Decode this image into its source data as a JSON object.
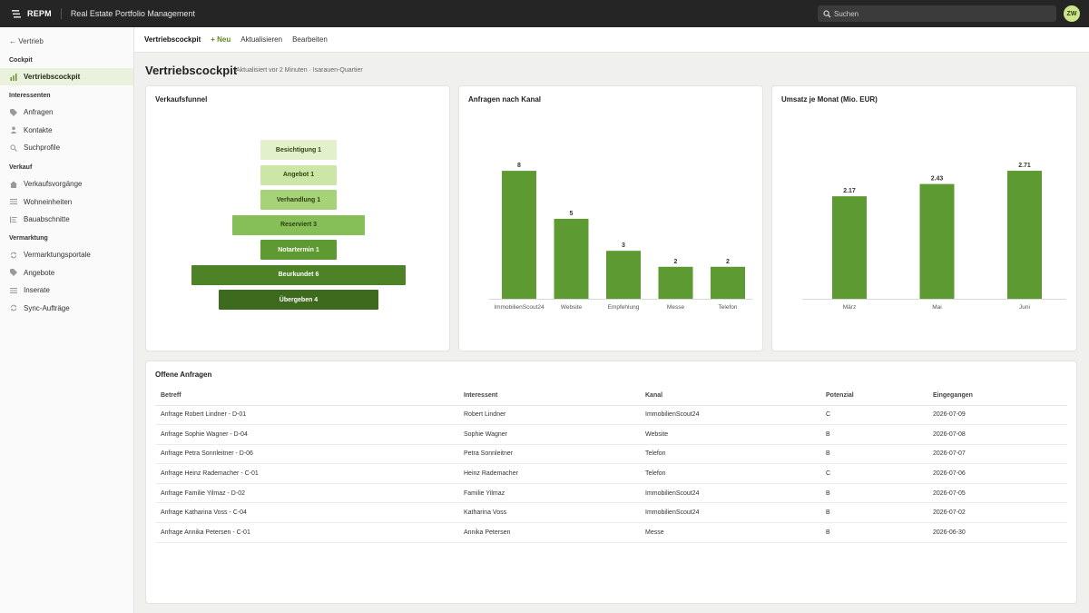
{
  "topbar": {
    "brand": "REPM",
    "app_title": "Real Estate Portfolio Management",
    "search_placeholder": "Suchen",
    "avatar_initials": "ZW"
  },
  "sidebar": {
    "back_label": "← Vertrieb",
    "sections": [
      {
        "label": "Cockpit",
        "items": [
          {
            "label": "Vertriebscockpit",
            "icon": "bar-chart-icon",
            "active": true
          }
        ]
      },
      {
        "label": "Interessenten",
        "items": [
          {
            "label": "Anfragen",
            "icon": "tag-icon"
          },
          {
            "label": "Kontakte",
            "icon": "person-icon"
          },
          {
            "label": "Suchprofile",
            "icon": "search-icon"
          }
        ]
      },
      {
        "label": "Verkauf",
        "items": [
          {
            "label": "Verkaufsvorgänge",
            "icon": "home-icon"
          },
          {
            "label": "Wohneinheiten",
            "icon": "list-icon"
          },
          {
            "label": "Bauabschnitte",
            "icon": "sections-icon"
          }
        ]
      },
      {
        "label": "Vermarktung",
        "items": [
          {
            "label": "Vermarktungsportale",
            "icon": "sync-icon"
          },
          {
            "label": "Angebote",
            "icon": "tag-icon"
          },
          {
            "label": "Inserate",
            "icon": "list-icon"
          },
          {
            "label": "Sync-Aufträge",
            "icon": "sync-icon"
          }
        ]
      }
    ]
  },
  "toolbar": {
    "current": "Vertriebscockpit",
    "new_label": "+ Neu",
    "refresh_label": "Aktualisieren",
    "edit_label": "Bearbeiten"
  },
  "page": {
    "title": "Vertriebscockpit",
    "subtitle": "Aktualisiert vor 2 Minuten · Isarauen-Quartier"
  },
  "funnel": {
    "title": "Verkaufsfunnel",
    "steps": [
      {
        "label": "Besichtigung 1",
        "value": 1,
        "color": "#e2f1cc",
        "text_color": "#33450f"
      },
      {
        "label": "Angebot 1",
        "value": 1,
        "color": "#cbe6a6",
        "text_color": "#33450f"
      },
      {
        "label": "Verhandlung 1",
        "value": 1,
        "color": "#a6d278",
        "text_color": "#2d3f10"
      },
      {
        "label": "Reserviert 3",
        "value": 3,
        "color": "#86bf58",
        "text_color": "#2d3f10"
      },
      {
        "label": "Notartermin 1",
        "value": 1,
        "color": "#5e9a32",
        "text_color": "#ffffff"
      },
      {
        "label": "Beurkundet 6",
        "value": 6,
        "color": "#4e8226",
        "text_color": "#ffffff"
      },
      {
        "label": "Übergeben 4",
        "value": 4,
        "color": "#3e6a1e",
        "text_color": "#ffffff"
      }
    ]
  },
  "chart_data": [
    {
      "type": "bar",
      "title": "Anfragen nach Kanal",
      "categories": [
        "ImmobilienScout24",
        "Website",
        "Empfehlung",
        "Messe",
        "Telefon"
      ],
      "values": [
        8,
        5,
        3,
        2,
        2
      ],
      "ylim": [
        0,
        8.8
      ],
      "color": "#5e9a32"
    },
    {
      "type": "bar",
      "title": "Umsatz je Monat (Mio. EUR)",
      "categories": [
        "März",
        "Mai",
        "Juni"
      ],
      "values": [
        2.17,
        2.43,
        2.71
      ],
      "ylim": [
        0,
        2.98
      ],
      "color": "#5e9a32"
    }
  ],
  "table": {
    "title": "Offene Anfragen",
    "columns": [
      "Betreff",
      "Interessent",
      "Kanal",
      "Potenzial",
      "Eingegangen"
    ],
    "rows": [
      [
        "Anfrage Robert Lindner - D-01",
        "Robert Lindner",
        "ImmobilienScout24",
        "C",
        "2026-07-09"
      ],
      [
        "Anfrage Sophie Wagner - D-04",
        "Sophie Wagner",
        "Website",
        "B",
        "2026-07-08"
      ],
      [
        "Anfrage Petra Sonnleitner - D-06",
        "Petra Sonnleitner",
        "Telefon",
        "B",
        "2026-07-07"
      ],
      [
        "Anfrage Heinz Rademacher - C-01",
        "Heinz Rademacher",
        "Telefon",
        "C",
        "2026-07-06"
      ],
      [
        "Anfrage Familie Yilmaz - D-02",
        "Familie Yilmaz",
        "ImmobilienScout24",
        "B",
        "2026-07-05"
      ],
      [
        "Anfrage Katharina Voss - C-04",
        "Katharina Voss",
        "ImmobilienScout24",
        "B",
        "2026-07-02"
      ],
      [
        "Anfrage Annika Petersen - C-01",
        "Annika Petersen",
        "Messe",
        "B",
        "2026-06-30"
      ]
    ]
  }
}
